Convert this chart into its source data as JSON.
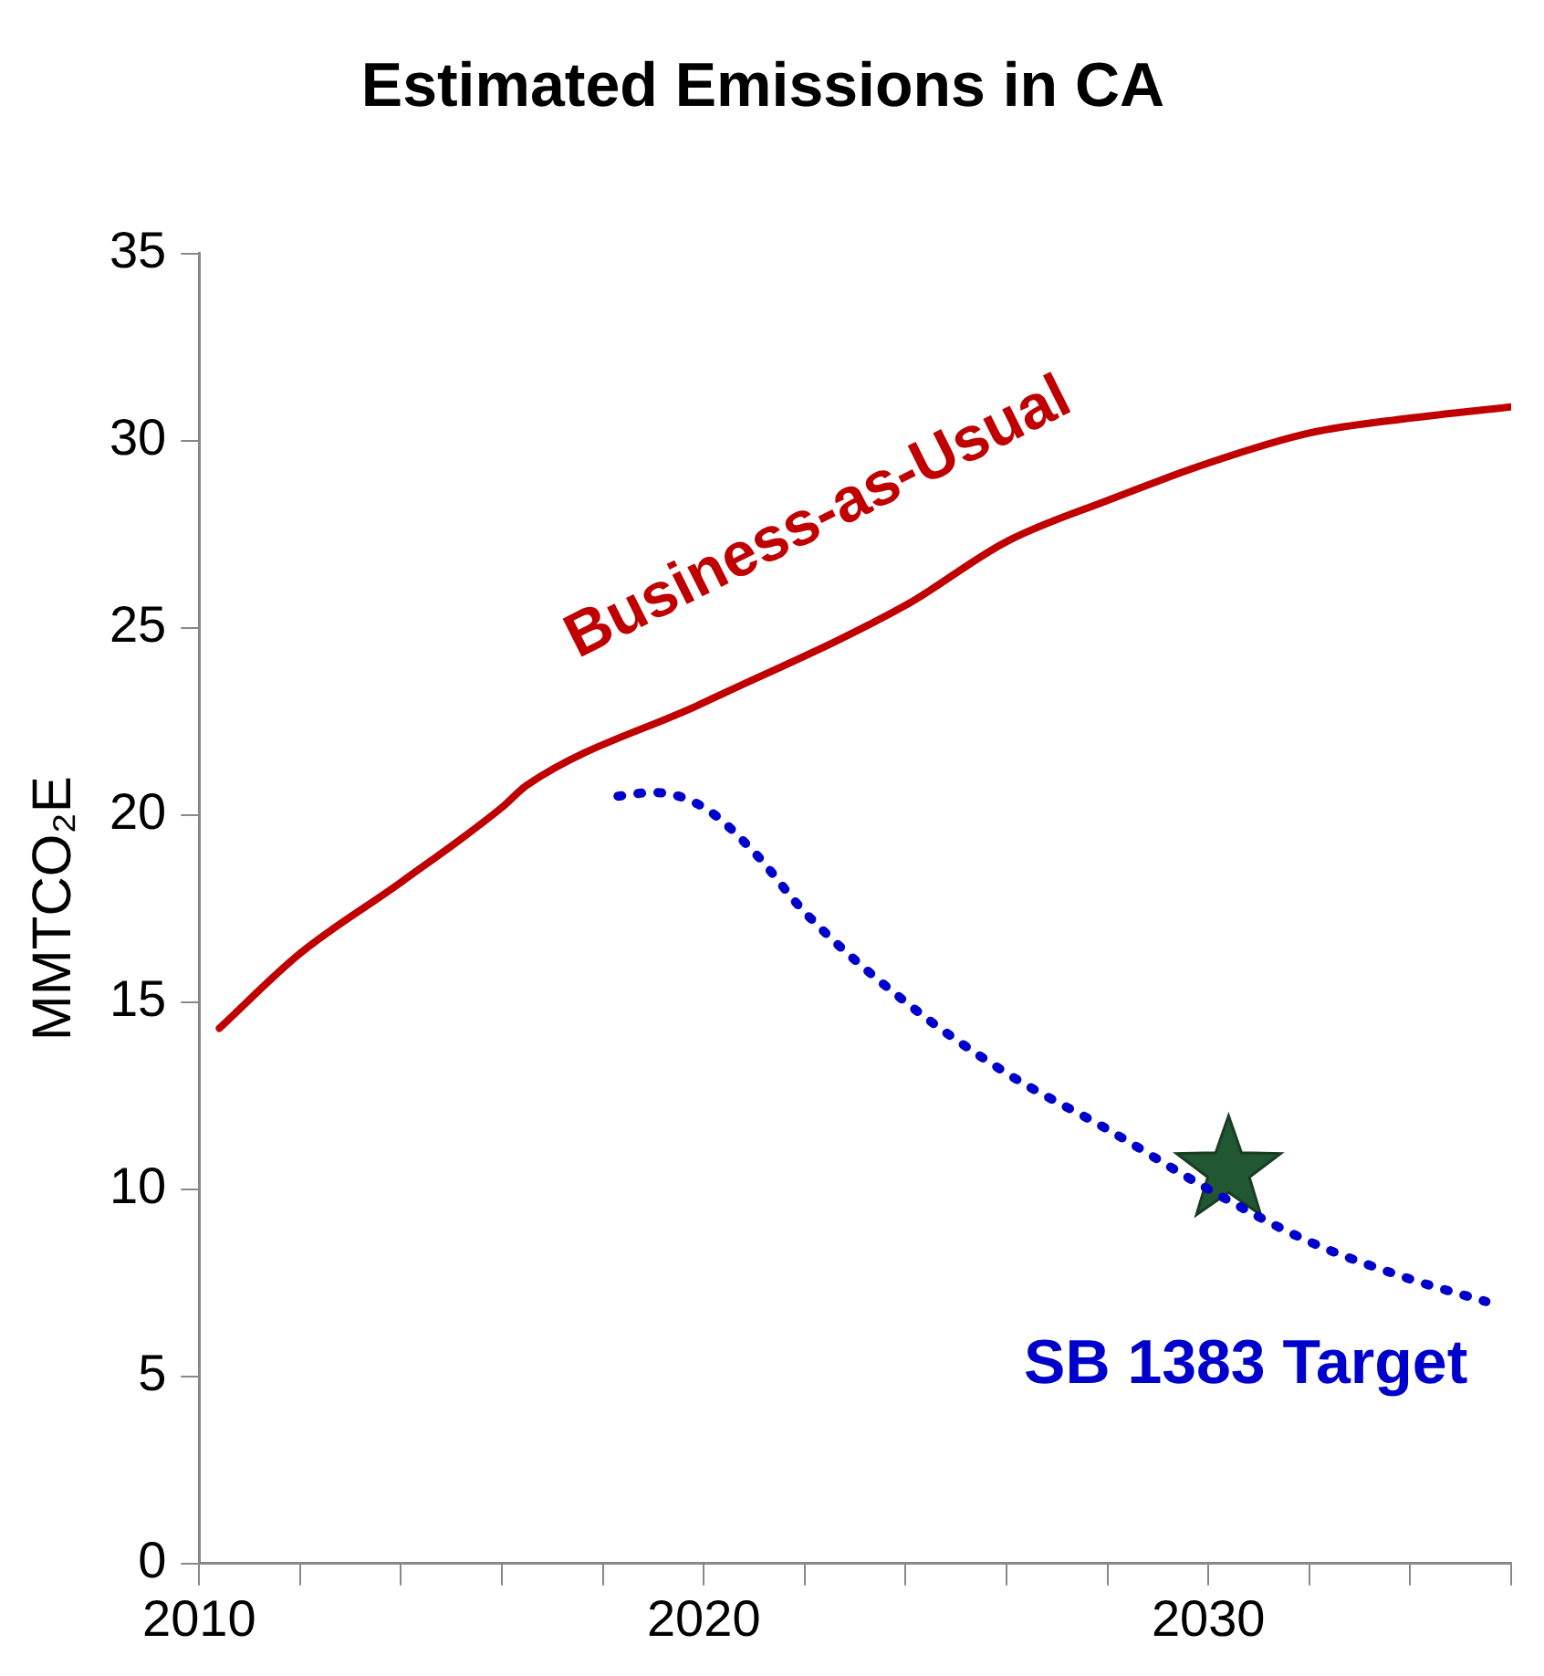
{
  "chart_data": {
    "type": "line",
    "title": "Estimated Emissions in CA",
    "ylabel": "MMTCO₂E",
    "xlim": [
      2010,
      2036
    ],
    "xticks": [
      2010,
      {
        "value": 2012,
        "label": null
      },
      {
        "value": 2014,
        "label": null
      },
      {
        "value": 2016,
        "label": null
      },
      {
        "value": 2018,
        "label": null
      },
      2020,
      {
        "value": 2022,
        "label": null
      },
      {
        "value": 2024,
        "label": null
      },
      {
        "value": 2026,
        "label": null
      },
      {
        "value": 2028,
        "label": null
      },
      2030,
      {
        "value": 2032,
        "label": null
      },
      {
        "value": 2034,
        "label": null
      },
      {
        "value": 2036,
        "label": null
      }
    ],
    "ylim": [
      0,
      35
    ],
    "yticks": [
      0,
      5,
      10,
      15,
      20,
      25,
      30,
      35
    ],
    "grid": false,
    "legend": false,
    "series": [
      {
        "name": "Business-as-Usual",
        "color": "#c00000",
        "line_style": "solid",
        "marker": "none",
        "x": [
          2010.4,
          2012,
          2014,
          2016,
          2016.5,
          2020,
          2024,
          2026,
          2028,
          2030,
          2032,
          2034,
          2036
        ],
        "values": [
          14.3,
          16.3,
          18.2,
          20.2,
          20.8,
          23.0,
          25.6,
          27.3,
          28.4,
          29.4,
          30.2,
          30.6,
          30.9
        ]
      },
      {
        "name": "SB 1383 Target",
        "color": "#0000cc",
        "line_style": "dotted",
        "marker": "none",
        "x": [
          2018.3,
          2019,
          2020,
          2021,
          2022,
          2024,
          2026,
          2028,
          2030,
          2032,
          2034,
          2035.5
        ],
        "values": [
          20.5,
          20.6,
          20.2,
          19.0,
          17.4,
          15.0,
          13.1,
          11.6,
          10.0,
          8.6,
          7.6,
          7.0
        ]
      },
      {
        "type": "scatter",
        "color": "#215732",
        "marker": "star",
        "x": [
          2030.4
        ],
        "values": [
          10.5
        ]
      }
    ]
  }
}
